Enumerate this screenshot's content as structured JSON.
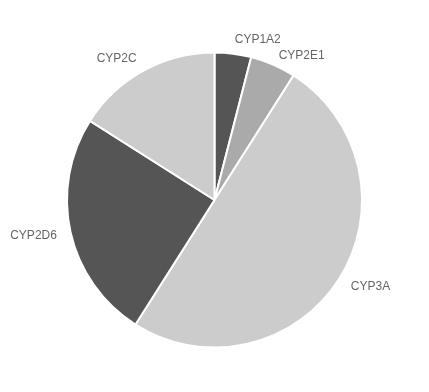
{
  "chart_data": {
    "type": "pie",
    "categories": [
      "CYP1A2",
      "CYP2E1",
      "CYP3A",
      "CYP2D6",
      "CYP2C"
    ],
    "values": [
      4,
      5,
      50,
      25,
      16
    ],
    "colors": [
      "#555555",
      "#aaaaaa",
      "#cccccc",
      "#555555",
      "#cccccc"
    ]
  }
}
